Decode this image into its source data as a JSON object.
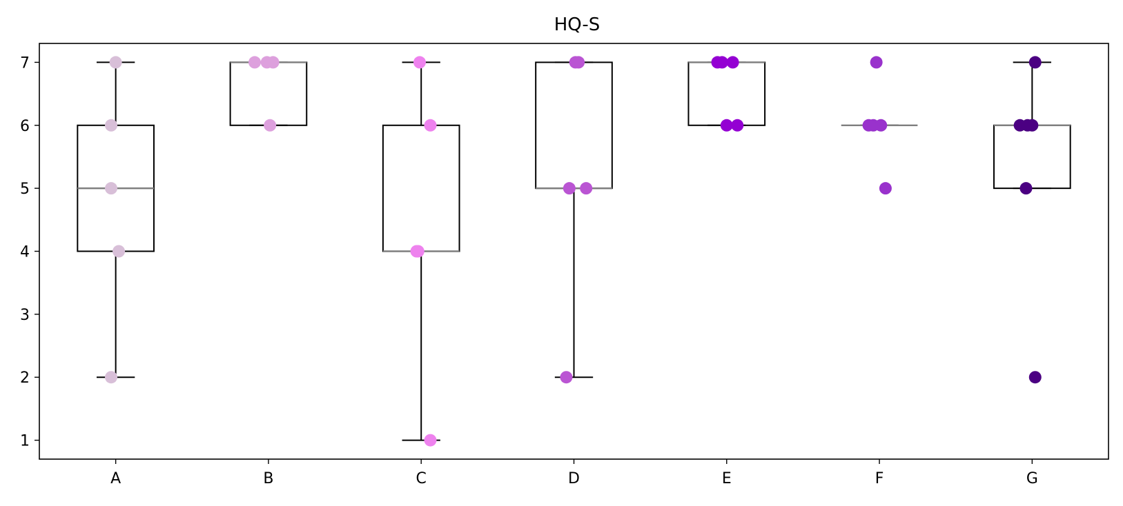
{
  "chart_data": {
    "type": "box",
    "title": "HQ-S",
    "xlabel": "",
    "ylabel": "",
    "categories": [
      "A",
      "B",
      "C",
      "D",
      "E",
      "F",
      "G"
    ],
    "ylim": [
      0.7,
      7.3
    ],
    "yticks": [
      1,
      2,
      3,
      4,
      5,
      6,
      7
    ],
    "grid": false,
    "median_color": "#7f7f7f",
    "box_color": "#000000",
    "boxes": [
      {
        "category": "A",
        "whisker_low": 2,
        "q1": 4,
        "median": 5,
        "q3": 6,
        "whisker_high": 7,
        "point_color": "#d8bfd8",
        "points": [
          {
            "y": 7,
            "jitter": 0.0
          },
          {
            "y": 6,
            "jitter": -0.03
          },
          {
            "y": 5,
            "jitter": -0.03
          },
          {
            "y": 4,
            "jitter": 0.02
          },
          {
            "y": 2,
            "jitter": -0.03
          }
        ]
      },
      {
        "category": "B",
        "whisker_low": 6,
        "q1": 6,
        "median": 7,
        "q3": 7,
        "whisker_high": 7,
        "point_color": "#dda0dd",
        "points": [
          {
            "y": 7,
            "jitter": -0.09
          },
          {
            "y": 7,
            "jitter": -0.01
          },
          {
            "y": 7,
            "jitter": 0.03
          },
          {
            "y": 6,
            "jitter": 0.01
          }
        ]
      },
      {
        "category": "C",
        "whisker_low": 1,
        "q1": 4,
        "median": 4,
        "q3": 6,
        "whisker_high": 7,
        "point_color": "#ee82ee",
        "points": [
          {
            "y": 7,
            "jitter": -0.01
          },
          {
            "y": 6,
            "jitter": 0.06
          },
          {
            "y": 4,
            "jitter": -0.03
          },
          {
            "y": 4,
            "jitter": -0.02
          },
          {
            "y": 1,
            "jitter": 0.06
          }
        ]
      },
      {
        "category": "D",
        "whisker_low": 2,
        "q1": 5,
        "median": 5,
        "q3": 7,
        "whisker_high": 7,
        "point_color": "#ba55d3",
        "points": [
          {
            "y": 7,
            "jitter": 0.01
          },
          {
            "y": 7,
            "jitter": 0.03
          },
          {
            "y": 5,
            "jitter": -0.03
          },
          {
            "y": 5,
            "jitter": 0.08
          },
          {
            "y": 2,
            "jitter": -0.05
          }
        ]
      },
      {
        "category": "E",
        "whisker_low": 6,
        "q1": 6,
        "median": 7,
        "q3": 7,
        "whisker_high": 7,
        "point_color": "#9400d3",
        "points": [
          {
            "y": 7,
            "jitter": -0.06
          },
          {
            "y": 7,
            "jitter": -0.03
          },
          {
            "y": 7,
            "jitter": 0.04
          },
          {
            "y": 6,
            "jitter": 0.0
          },
          {
            "y": 6,
            "jitter": 0.07
          }
        ]
      },
      {
        "category": "F",
        "whisker_low": 6,
        "q1": 6,
        "median": 6,
        "q3": 6,
        "whisker_high": 6,
        "point_color": "#9932cc",
        "points": [
          {
            "y": 7,
            "jitter": -0.02
          },
          {
            "y": 6,
            "jitter": -0.07
          },
          {
            "y": 6,
            "jitter": -0.04
          },
          {
            "y": 6,
            "jitter": 0.01
          },
          {
            "y": 5,
            "jitter": 0.04
          }
        ]
      },
      {
        "category": "G",
        "whisker_low": 5,
        "q1": 5,
        "median": 6,
        "q3": 6,
        "whisker_high": 7,
        "point_color": "#4b0082",
        "outliers": [
          2
        ],
        "points": [
          {
            "y": 7,
            "jitter": 0.02
          },
          {
            "y": 6,
            "jitter": -0.08
          },
          {
            "y": 6,
            "jitter": -0.03
          },
          {
            "y": 6,
            "jitter": 0.0
          },
          {
            "y": 5,
            "jitter": -0.04
          },
          {
            "y": 2,
            "jitter": 0.02
          }
        ]
      }
    ]
  }
}
